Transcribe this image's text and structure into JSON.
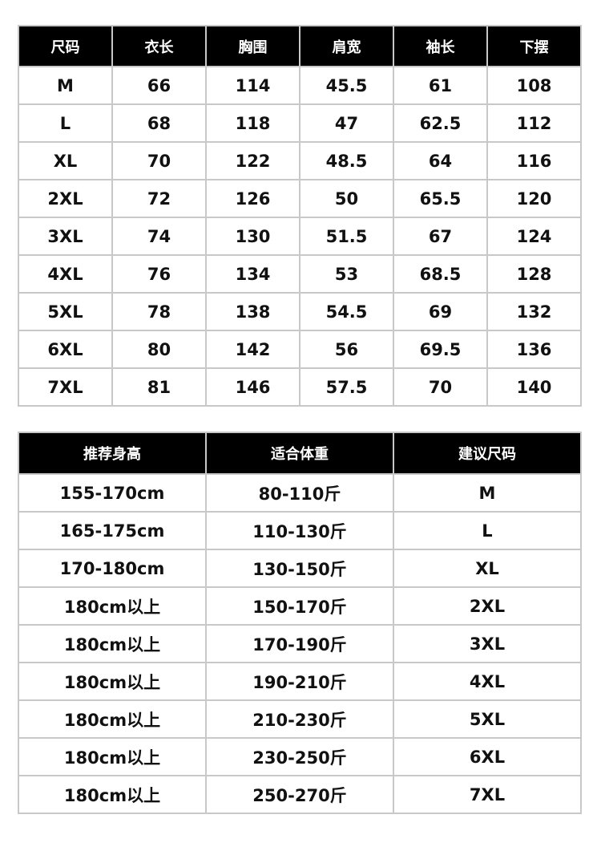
{
  "size_table": {
    "headers": [
      "尺码",
      "衣长",
      "胸围",
      "肩宽",
      "袖长",
      "下摆"
    ],
    "rows": [
      [
        "M",
        "66",
        "114",
        "45.5",
        "61",
        "108"
      ],
      [
        "L",
        "68",
        "118",
        "47",
        "62.5",
        "112"
      ],
      [
        "XL",
        "70",
        "122",
        "48.5",
        "64",
        "116"
      ],
      [
        "2XL",
        "72",
        "126",
        "50",
        "65.5",
        "120"
      ],
      [
        "3XL",
        "74",
        "130",
        "51.5",
        "67",
        "124"
      ],
      [
        "4XL",
        "76",
        "134",
        "53",
        "68.5",
        "128"
      ],
      [
        "5XL",
        "78",
        "138",
        "54.5",
        "69",
        "132"
      ],
      [
        "6XL",
        "80",
        "142",
        "56",
        "69.5",
        "136"
      ],
      [
        "7XL",
        "81",
        "146",
        "57.5",
        "70",
        "140"
      ]
    ]
  },
  "recommend_table": {
    "headers": [
      "推荐身高",
      "适合体重",
      "建议尺码"
    ],
    "rows": [
      [
        "155-170cm",
        "80-110斤",
        "M"
      ],
      [
        "165-175cm",
        "110-130斤",
        "L"
      ],
      [
        "170-180cm",
        "130-150斤",
        "XL"
      ],
      [
        "180cm以上",
        "150-170斤",
        "2XL"
      ],
      [
        "180cm以上",
        "170-190斤",
        "3XL"
      ],
      [
        "180cm以上",
        "190-210斤",
        "4XL"
      ],
      [
        "180cm以上",
        "210-230斤",
        "5XL"
      ],
      [
        "180cm以上",
        "230-250斤",
        "6XL"
      ],
      [
        "180cm以上",
        "250-270斤",
        "7XL"
      ]
    ]
  }
}
